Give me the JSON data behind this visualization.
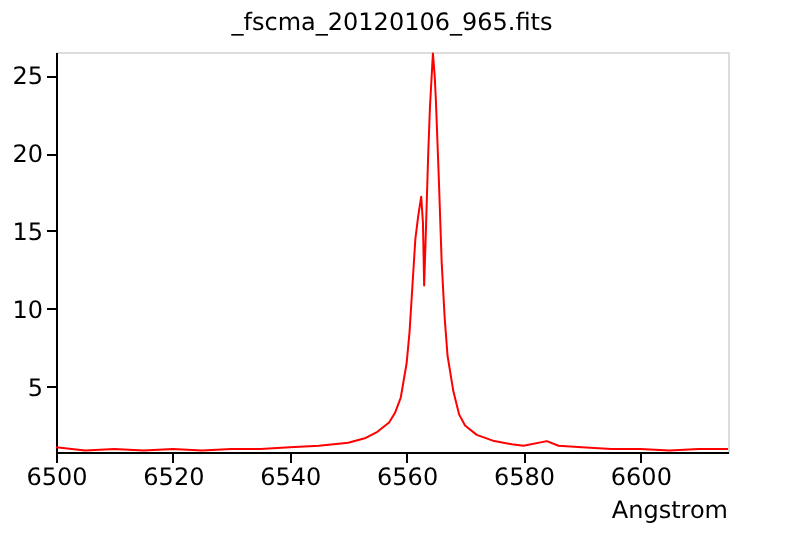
{
  "chart_data": {
    "type": "line",
    "title": "_fscma_20120106_965.fits",
    "xlabel": "Angstrom",
    "xlim": [
      6500,
      6615
    ],
    "xticks": [
      6500,
      6520,
      6540,
      6560,
      6580,
      6600
    ],
    "ylim": [
      0.8,
      26.5
    ],
    "yticks": [
      5,
      10,
      15,
      20,
      25
    ],
    "grid": false,
    "marker": "none",
    "line_style": "solid",
    "series": [
      {
        "color": "#ff0000",
        "x": [
          6500,
          6505,
          6510,
          6515,
          6520,
          6525,
          6530,
          6535,
          6540,
          6545,
          6550,
          6553,
          6555,
          6557,
          6558,
          6559,
          6560,
          6560.5,
          6561,
          6561.5,
          6562,
          6562.5,
          6562.8,
          6563,
          6563.3,
          6563.7,
          6564,
          6564.5,
          6564.8,
          6565,
          6565.5,
          6566,
          6566.5,
          6567,
          6568,
          6569,
          6570,
          6572,
          6575,
          6578,
          6580,
          6584,
          6586,
          6590,
          6595,
          6600,
          6605,
          6610,
          6615
        ],
        "values": [
          1.1,
          0.9,
          1.0,
          0.9,
          1.0,
          0.9,
          1.0,
          1.0,
          1.1,
          1.2,
          1.4,
          1.7,
          2.1,
          2.7,
          3.3,
          4.3,
          6.5,
          8.5,
          11.5,
          14.5,
          16.0,
          17.2,
          15.5,
          11.5,
          15.0,
          20.0,
          23.0,
          26.4,
          25.0,
          23.5,
          18.5,
          13.0,
          9.5,
          7.0,
          4.7,
          3.2,
          2.5,
          1.9,
          1.5,
          1.3,
          1.2,
          1.5,
          1.2,
          1.1,
          1.0,
          1.0,
          0.9,
          1.0,
          1.0
        ]
      }
    ]
  }
}
